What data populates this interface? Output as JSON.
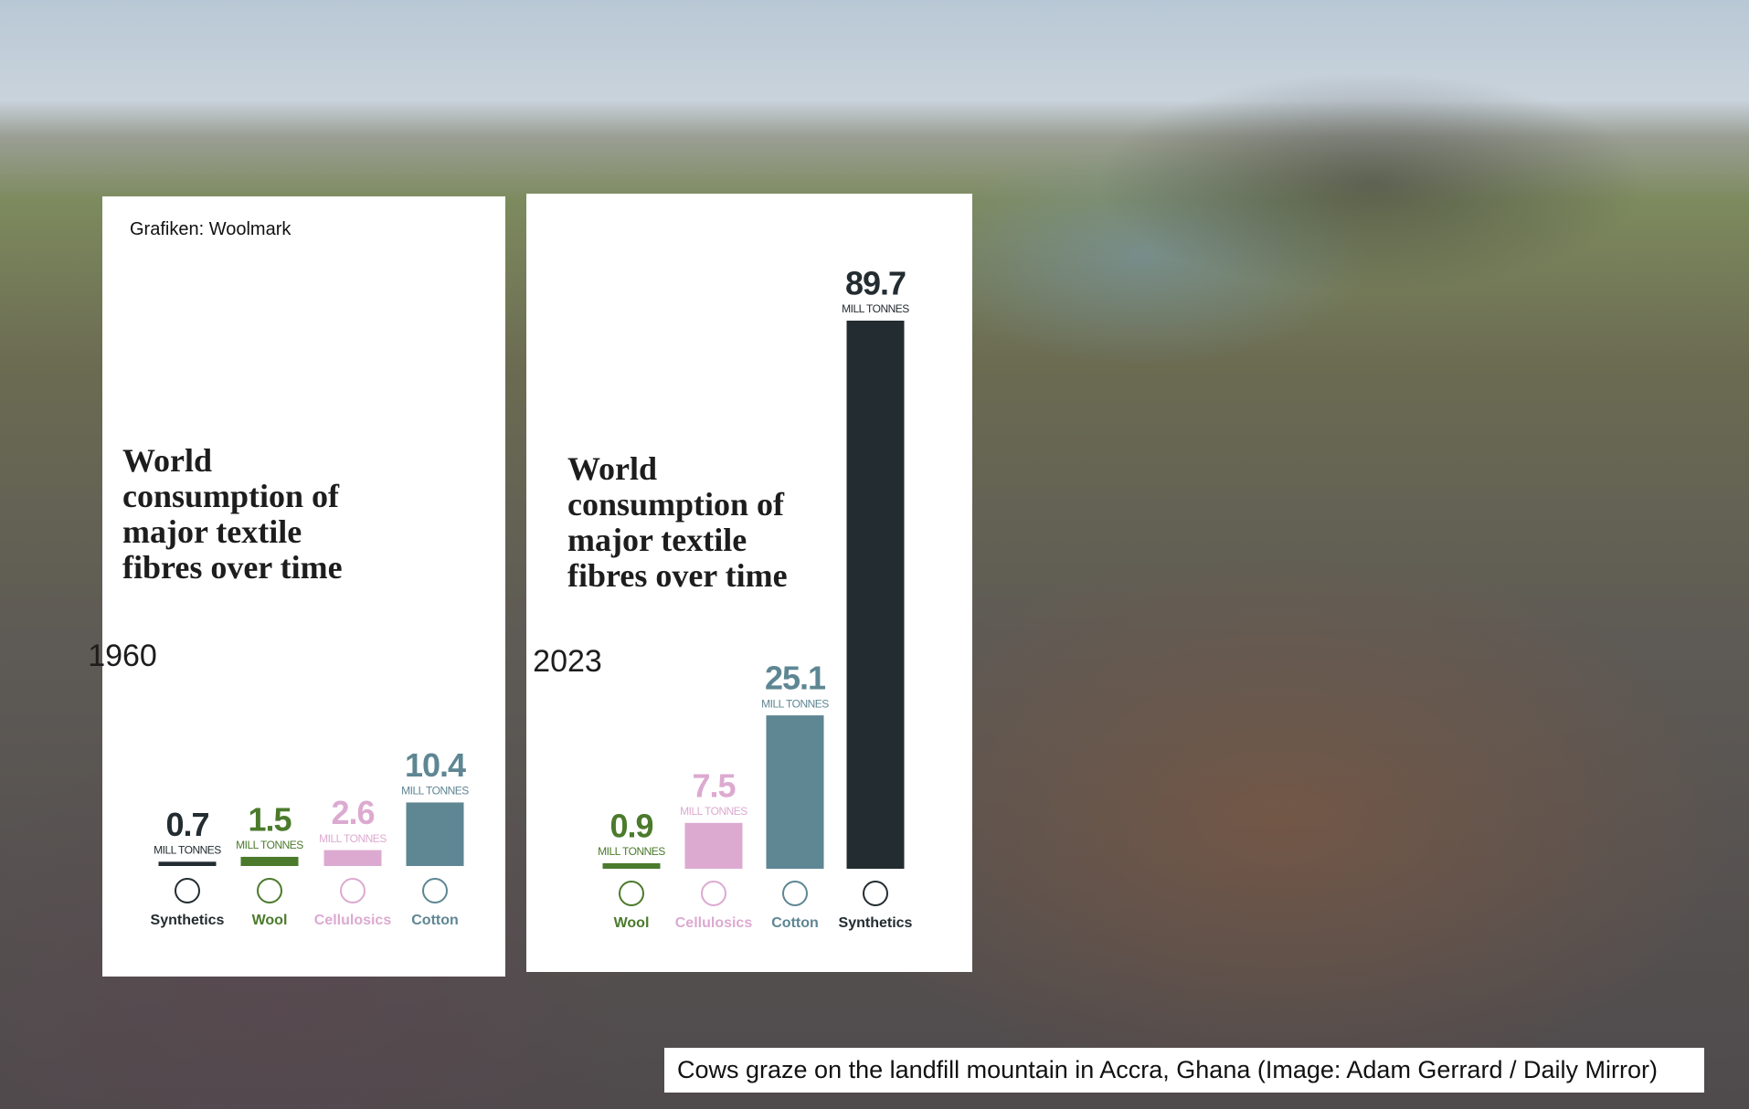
{
  "source": "Grafiken: Woolmark",
  "caption": "Cows graze on the landfill mountain in Accra, Ghana (Image: Adam Gerrard / Daily Mirror)",
  "chart_data": [
    {
      "type": "bar",
      "title": "World consumption of major textile fibres over time",
      "subtitle": "1960",
      "unit": "MILL TONNES",
      "categories": [
        "Synthetics",
        "Wool",
        "Cellulosics",
        "Cotton"
      ],
      "values": [
        0.7,
        1.5,
        2.6,
        10.4
      ],
      "colors": [
        "#232c30",
        "#4b7a2c",
        "#dcaad0",
        "#5e8693"
      ]
    },
    {
      "type": "bar",
      "title": "World consumption of major textile fibres over time",
      "subtitle": "2023",
      "unit": "MILL TONNES",
      "categories": [
        "Wool",
        "Cellulosics",
        "Cotton",
        "Synthetics"
      ],
      "values": [
        0.9,
        7.5,
        25.1,
        89.7
      ],
      "colors": [
        "#4b7a2c",
        "#dcaad0",
        "#5e8693",
        "#232c30"
      ]
    }
  ]
}
